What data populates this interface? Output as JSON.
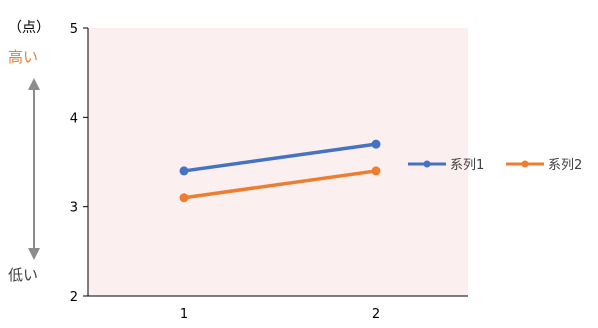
{
  "chart_data": {
    "type": "line",
    "x": [
      1,
      2
    ],
    "series": [
      {
        "name": "系列1",
        "values": [
          3.4,
          3.7
        ],
        "color": "#4472C4"
      },
      {
        "name": "系列2",
        "values": [
          3.1,
          3.4
        ],
        "color": "#ED7D31"
      }
    ],
    "ylim": [
      2,
      5
    ],
    "yticks": [
      2,
      3,
      4,
      5
    ],
    "xticks": [
      1,
      2
    ],
    "yunit": "（点）",
    "annotations": {
      "high": "高い",
      "low": "低い"
    },
    "legend": "right",
    "grid": false
  },
  "colors": {
    "plot_bg": "#FCEFEF",
    "axis": "#000000",
    "high_text": "#ED7D31",
    "low_text": "#404040",
    "arrow": "#8C8C8C"
  }
}
